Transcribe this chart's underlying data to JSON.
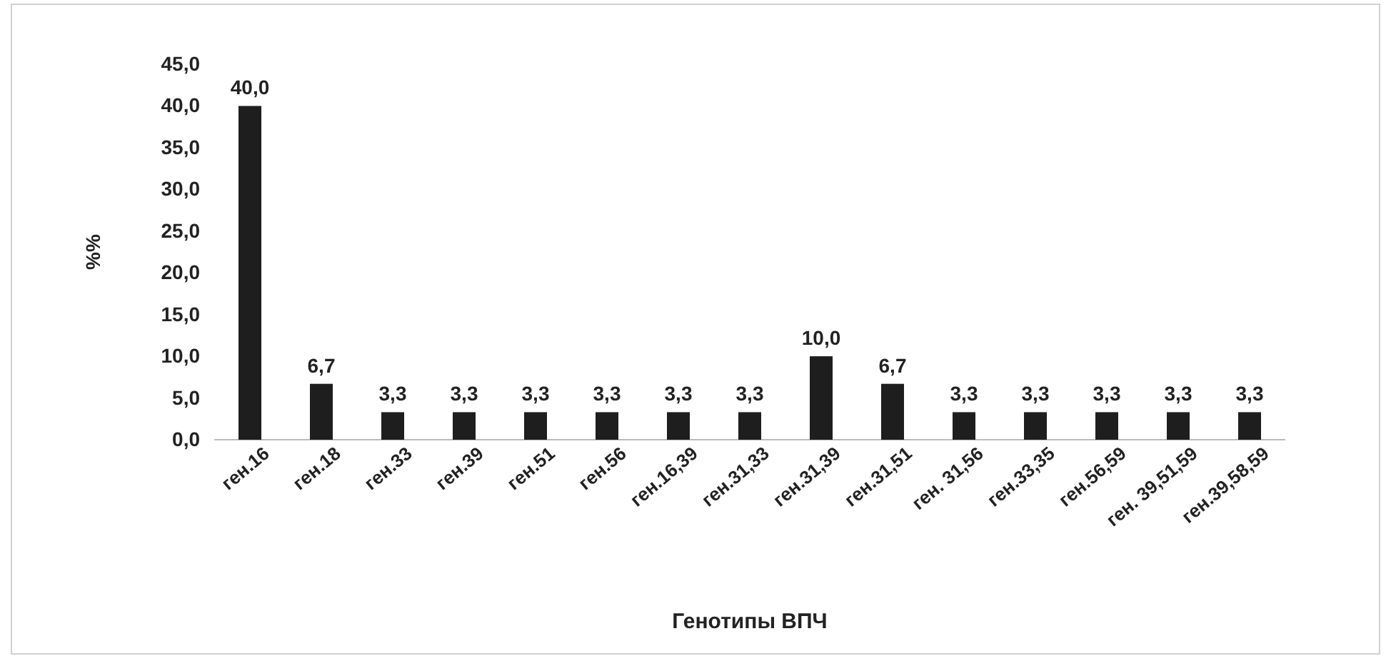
{
  "chart_data": {
    "type": "bar",
    "xlabel": "Генотипы ВПЧ",
    "ylabel": "%%",
    "categories": [
      "ген.16",
      "ген.18",
      "ген.33",
      "ген.39",
      "ген.51",
      "ген.56",
      "ген.16,39",
      "ген.31,33",
      "ген.31,39",
      "ген.31,51",
      "ген. 31,56",
      "ген.33,35",
      "ген.56,59",
      "ген. 39,51,59",
      "ген.39,58,59"
    ],
    "values": [
      40.0,
      6.7,
      3.3,
      3.3,
      3.3,
      3.3,
      3.3,
      3.3,
      10.0,
      6.7,
      3.3,
      3.3,
      3.3,
      3.3,
      3.3
    ],
    "value_labels": [
      "40,0",
      "6,7",
      "3,3",
      "3,3",
      "3,3",
      "3,3",
      "3,3",
      "3,3",
      "10,0",
      "6,7",
      "3,3",
      "3,3",
      "3,3",
      "3,3",
      "3,3"
    ],
    "color": "#1e1e1e",
    "ylim": [
      0,
      45
    ],
    "yticks": [
      {
        "value": 0,
        "label": "0,0"
      },
      {
        "value": 5,
        "label": "5,0"
      },
      {
        "value": 10,
        "label": "10,0"
      },
      {
        "value": 15,
        "label": "15,0"
      },
      {
        "value": 20,
        "label": "20,0"
      },
      {
        "value": 25,
        "label": "25,0"
      },
      {
        "value": 30,
        "label": "30,0"
      },
      {
        "value": 35,
        "label": "35,0"
      },
      {
        "value": 40,
        "label": "40,0"
      },
      {
        "value": 45,
        "label": "45,0"
      }
    ],
    "grid": false
  }
}
